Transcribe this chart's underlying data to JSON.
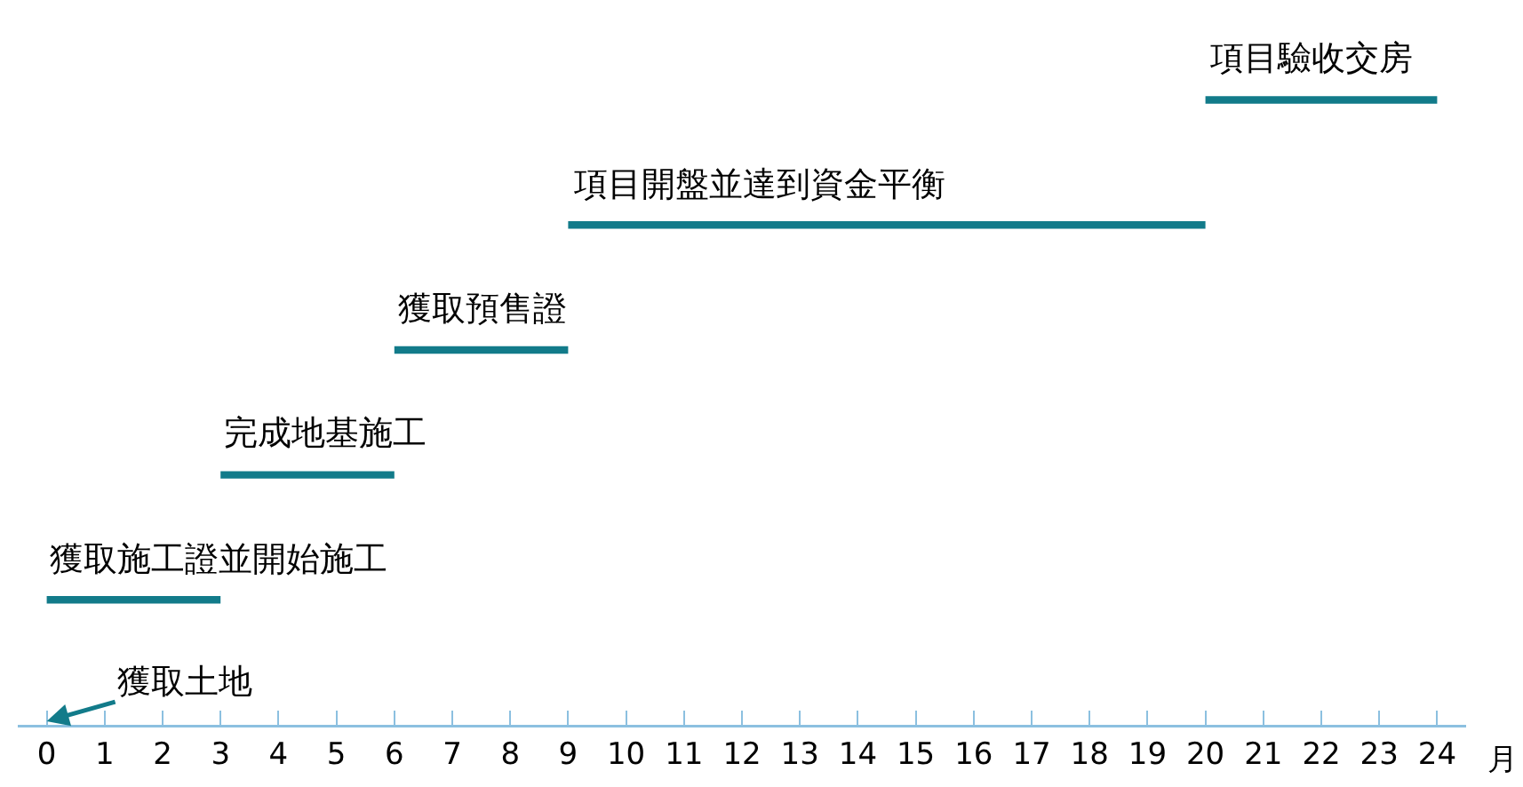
{
  "chart_data": {
    "type": "bar",
    "orientation": "horizontal",
    "categories": [
      "項目驗收交房",
      "項目開盤並達到資金平衡",
      "獲取預售證",
      "完成地基施工",
      "獲取施工證並開始施工"
    ],
    "base": [
      20,
      9,
      6,
      3,
      0
    ],
    "values": [
      4,
      11,
      3,
      3,
      3
    ],
    "color": "#127b8a",
    "xlim": [
      -0.5,
      24.5
    ],
    "xticks": [
      0,
      1,
      2,
      3,
      4,
      5,
      6,
      7,
      8,
      9,
      10,
      11,
      12,
      13,
      14,
      15,
      16,
      17,
      18,
      19,
      20,
      21,
      22,
      23,
      24
    ],
    "xlabel": "月",
    "tick_labels": "x",
    "grid": false,
    "annotations": [
      "獲取土地"
    ]
  }
}
